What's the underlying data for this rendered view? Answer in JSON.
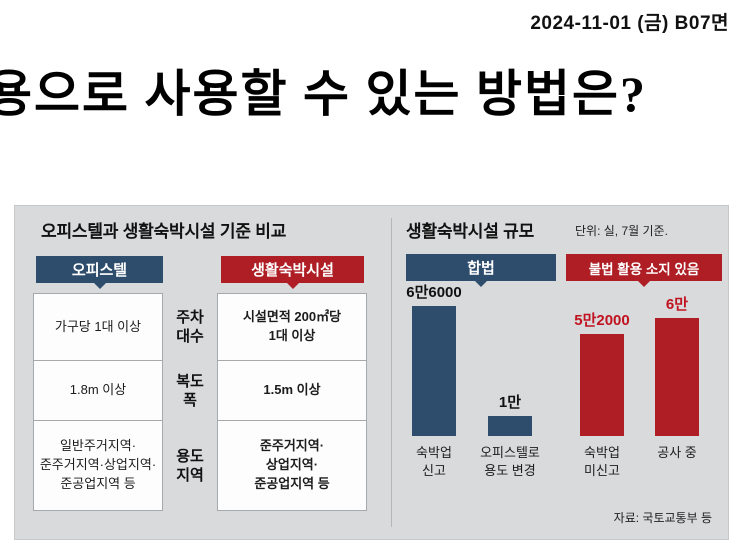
{
  "colors": {
    "navy": "#2e4d6d",
    "red": "#ae1e24",
    "red_text": "#c1121f",
    "panel_bg": "#d8dadc"
  },
  "page": {
    "date_header": "2024-11-01 (금) B07면",
    "headline": "용으로 사용할 수 있는 방법은?"
  },
  "comparison": {
    "title": "오피스텔과 생활숙박시설 기준 비교",
    "columns": {
      "left": "오피스텔",
      "right": "생활숙박시설"
    },
    "rows": [
      {
        "left": "가구당 1대 이상",
        "label": "주차\n대수",
        "right": "시설면적 200㎡당\n1대 이상"
      },
      {
        "left": "1.8m 이상",
        "label": "복도\n폭",
        "right": "1.5m 이상"
      },
      {
        "left": "일반주거지역·\n준주거지역·상업지역·\n준공업지역 등",
        "label": "용도\n지역",
        "right": "준주거지역·\n상업지역·\n준공업지역 등"
      }
    ]
  },
  "chart_data": {
    "type": "bar",
    "title": "생활숙박시설 규모",
    "unit_note": "단위: 실, 7월 기준.",
    "ylim": [
      0,
      66000
    ],
    "legend": [
      {
        "label": "합법",
        "color": "#2e4d6d"
      },
      {
        "label": "불법 활용 소지 있음",
        "color": "#ae1e24"
      }
    ],
    "categories": [
      "숙박업\n신고",
      "오피스텔로\n용도 변경",
      "숙박업\n미신고",
      "공사 중"
    ],
    "values": [
      66000,
      10000,
      52000,
      60000
    ],
    "bars": [
      {
        "category": "숙박업\n신고",
        "value": 66000,
        "value_label": "6만6000",
        "group": "합법"
      },
      {
        "category": "오피스텔로\n용도 변경",
        "value": 10000,
        "value_label": "1만",
        "group": "합법"
      },
      {
        "category": "숙박업\n미신고",
        "value": 52000,
        "value_label": "5만2000",
        "group": "불법 활용 소지 있음"
      },
      {
        "category": "공사 중",
        "value": 60000,
        "value_label": "6만",
        "group": "불법 활용 소지 있음"
      }
    ],
    "source": "자료: 국토교통부 등"
  }
}
